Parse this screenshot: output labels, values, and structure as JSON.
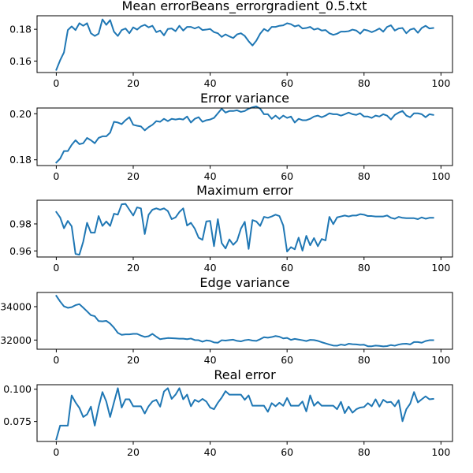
{
  "figure_title": "Mean errorBeans_errorgradient_0.5.txt",
  "line_color": "#1f77b4",
  "chart_data": [
    {
      "type": "line",
      "title": "",
      "xlim": [
        -5,
        103
      ],
      "ylim": [
        0.1528,
        0.1885
      ],
      "xticks": [
        0,
        20,
        40,
        60,
        80,
        100
      ],
      "xtick_labels": [
        "0",
        "20",
        "40",
        "60",
        "80",
        "100"
      ],
      "yticks": [
        0.16,
        0.18
      ],
      "ytick_labels": [
        "0.16",
        "0.18"
      ],
      "x": [
        0,
        1,
        2,
        3,
        4,
        5,
        6,
        7,
        8,
        9,
        10,
        11,
        12,
        13,
        14,
        15,
        16,
        17,
        18,
        19,
        20,
        21,
        22,
        23,
        24,
        25,
        26,
        27,
        28,
        29,
        30,
        31,
        32,
        33,
        34,
        35,
        36,
        37,
        38,
        39,
        40,
        41,
        42,
        43,
        44,
        45,
        46,
        47,
        48,
        49,
        50,
        51,
        52,
        53,
        54,
        55,
        56,
        57,
        58,
        59,
        60,
        61,
        62,
        63,
        64,
        65,
        66,
        67,
        68,
        69,
        70,
        71,
        72,
        73,
        74,
        75,
        76,
        77,
        78,
        79,
        80,
        81,
        82,
        83,
        84,
        85,
        86,
        87,
        88,
        89,
        90,
        91,
        92,
        93,
        94,
        95,
        96,
        97,
        98
      ],
      "y": [
        0.1545,
        0.1605,
        0.1655,
        0.1795,
        0.1818,
        0.1795,
        0.1838,
        0.1822,
        0.1838,
        0.1775,
        0.1758,
        0.1772,
        0.1862,
        0.1828,
        0.1858,
        0.1785,
        0.1758,
        0.1795,
        0.1805,
        0.1775,
        0.1812,
        0.1798,
        0.1818,
        0.1828,
        0.1812,
        0.1822,
        0.1782,
        0.1792,
        0.1762,
        0.1802,
        0.1805,
        0.1788,
        0.1822,
        0.1792,
        0.1815,
        0.1815,
        0.1805,
        0.1815,
        0.1795,
        0.1798,
        0.1802,
        0.1782,
        0.1775,
        0.1752,
        0.1768,
        0.1755,
        0.1745,
        0.1768,
        0.1775,
        0.1758,
        0.1725,
        0.1698,
        0.1728,
        0.1772,
        0.1802,
        0.1788,
        0.1815,
        0.1815,
        0.1822,
        0.1825,
        0.1838,
        0.1832,
        0.1818,
        0.1825,
        0.1805,
        0.1808,
        0.1815,
        0.1798,
        0.1805,
        0.1792,
        0.1795,
        0.1775,
        0.1765,
        0.1772,
        0.1785,
        0.1785,
        0.1788,
        0.1798,
        0.1792,
        0.1772,
        0.1798,
        0.1792,
        0.1782,
        0.1792,
        0.1805,
        0.1785,
        0.1815,
        0.1825,
        0.1792,
        0.1805,
        0.1808,
        0.1775,
        0.1798,
        0.1805,
        0.1778,
        0.1808,
        0.1822,
        0.1805,
        0.1808
      ]
    },
    {
      "type": "line",
      "title": "Error variance",
      "xlim": [
        -5,
        103
      ],
      "ylim": [
        0.1775,
        0.2025
      ],
      "xticks": [
        0,
        20,
        40,
        60,
        80,
        100
      ],
      "xtick_labels": [
        "0",
        "20",
        "40",
        "60",
        "80",
        "100"
      ],
      "yticks": [
        0.18,
        0.2
      ],
      "ytick_labels": [
        "0.18",
        "0.20"
      ],
      "x": [
        0,
        1,
        2,
        3,
        4,
        5,
        6,
        7,
        8,
        9,
        10,
        11,
        12,
        13,
        14,
        15,
        16,
        17,
        18,
        19,
        20,
        21,
        22,
        23,
        24,
        25,
        26,
        27,
        28,
        29,
        30,
        31,
        32,
        33,
        34,
        35,
        36,
        37,
        38,
        39,
        40,
        41,
        42,
        43,
        44,
        45,
        46,
        47,
        48,
        49,
        50,
        51,
        52,
        53,
        54,
        55,
        56,
        57,
        58,
        59,
        60,
        61,
        62,
        63,
        64,
        65,
        66,
        67,
        68,
        69,
        70,
        71,
        72,
        73,
        74,
        75,
        76,
        77,
        78,
        79,
        80,
        81,
        82,
        83,
        84,
        85,
        86,
        87,
        88,
        89,
        90,
        91,
        92,
        93,
        94,
        95,
        96,
        97,
        98
      ],
      "y": [
        0.1788,
        0.1805,
        0.1838,
        0.1838,
        0.1865,
        0.1885,
        0.1868,
        0.1872,
        0.1895,
        0.1885,
        0.1872,
        0.1895,
        0.1902,
        0.1902,
        0.1918,
        0.1965,
        0.1962,
        0.1955,
        0.1972,
        0.1985,
        0.1952,
        0.1948,
        0.1945,
        0.1928,
        0.1942,
        0.1952,
        0.1968,
        0.1965,
        0.1978,
        0.1968,
        0.1978,
        0.1975,
        0.1978,
        0.1975,
        0.1988,
        0.1962,
        0.1978,
        0.1985,
        0.1965,
        0.1972,
        0.1975,
        0.1982,
        0.2002,
        0.2022,
        0.2005,
        0.2012,
        0.2012,
        0.2015,
        0.2008,
        0.2012,
        0.2022,
        0.2028,
        0.2032,
        0.2022,
        0.1998,
        0.1998,
        0.1978,
        0.1992,
        0.1978,
        0.1992,
        0.1982,
        0.1988,
        0.1962,
        0.1978,
        0.1972,
        0.1972,
        0.1978,
        0.1988,
        0.1992,
        0.1985,
        0.1992,
        0.2002,
        0.1998,
        0.1998,
        0.1992,
        0.1998,
        0.2005,
        0.1998,
        0.1995,
        0.2002,
        0.1988,
        0.1988,
        0.1982,
        0.1992,
        0.1988,
        0.1998,
        0.1992,
        0.1975,
        0.1995,
        0.2005,
        0.2012,
        0.1992,
        0.1985,
        0.2002,
        0.2002,
        0.1998,
        0.1985,
        0.1998,
        0.1995
      ]
    },
    {
      "type": "line",
      "title": "Maximum error",
      "xlim": [
        -5,
        103
      ],
      "ylim": [
        0.9555,
        0.9975
      ],
      "xticks": [
        0,
        20,
        40,
        60,
        80,
        100
      ],
      "xtick_labels": [
        "0",
        "20",
        "40",
        "60",
        "80",
        "100"
      ],
      "yticks": [
        0.96,
        0.98
      ],
      "ytick_labels": [
        "0.96",
        "0.98"
      ],
      "x": [
        0,
        1,
        2,
        3,
        4,
        5,
        6,
        7,
        8,
        9,
        10,
        11,
        12,
        13,
        14,
        15,
        16,
        17,
        18,
        19,
        20,
        21,
        22,
        23,
        24,
        25,
        26,
        27,
        28,
        29,
        30,
        31,
        32,
        33,
        34,
        35,
        36,
        37,
        38,
        39,
        40,
        41,
        42,
        43,
        44,
        45,
        46,
        47,
        48,
        49,
        50,
        51,
        52,
        53,
        54,
        55,
        56,
        57,
        58,
        59,
        60,
        61,
        62,
        63,
        64,
        65,
        66,
        67,
        68,
        69,
        70,
        71,
        72,
        73,
        74,
        75,
        76,
        77,
        78,
        79,
        80,
        81,
        82,
        83,
        84,
        85,
        86,
        87,
        88,
        89,
        90,
        91,
        92,
        93,
        94,
        95,
        96,
        97,
        98
      ],
      "y": [
        0.9888,
        0.9848,
        0.9768,
        0.9822,
        0.9782,
        0.9578,
        0.9572,
        0.9668,
        0.9808,
        0.9735,
        0.9735,
        0.9858,
        0.9785,
        0.9818,
        0.9785,
        0.9875,
        0.9868,
        0.9945,
        0.9948,
        0.9905,
        0.9862,
        0.9922,
        0.9915,
        0.9725,
        0.9868,
        0.9905,
        0.9915,
        0.9905,
        0.9915,
        0.9895,
        0.9835,
        0.9848,
        0.9888,
        0.9915,
        0.9788,
        0.9808,
        0.9765,
        0.9698,
        0.9682,
        0.9818,
        0.9822,
        0.9635,
        0.9835,
        0.9658,
        0.9618,
        0.9685,
        0.9645,
        0.9675,
        0.9765,
        0.9815,
        0.9615,
        0.9828,
        0.9818,
        0.9785,
        0.9852,
        0.9845,
        0.9855,
        0.9868,
        0.9858,
        0.9788,
        0.9595,
        0.9628,
        0.9612,
        0.9698,
        0.9602,
        0.9712,
        0.9642,
        0.9695,
        0.9635,
        0.9688,
        0.9678,
        0.9852,
        0.9798,
        0.9848,
        0.9855,
        0.9862,
        0.9855,
        0.9862,
        0.9862,
        0.9872,
        0.9868,
        0.9858,
        0.9858,
        0.9855,
        0.9855,
        0.9855,
        0.9862,
        0.9845,
        0.9838,
        0.9852,
        0.9845,
        0.9842,
        0.9842,
        0.9842,
        0.9835,
        0.9848,
        0.9838,
        0.9845,
        0.9845
      ]
    },
    {
      "type": "line",
      "title": "Edge variance",
      "xlim": [
        -5,
        103
      ],
      "ylim": [
        31450,
        34850
      ],
      "xticks": [
        0,
        20,
        40,
        60,
        80,
        100
      ],
      "xtick_labels": [
        "0",
        "20",
        "40",
        "60",
        "80",
        "100"
      ],
      "yticks": [
        32000,
        34000
      ],
      "ytick_labels": [
        "32000",
        "34000"
      ],
      "x": [
        0,
        1,
        2,
        3,
        4,
        5,
        6,
        7,
        8,
        9,
        10,
        11,
        12,
        13,
        14,
        15,
        16,
        17,
        18,
        19,
        20,
        21,
        22,
        23,
        24,
        25,
        26,
        27,
        28,
        29,
        30,
        31,
        32,
        33,
        34,
        35,
        36,
        37,
        38,
        39,
        40,
        41,
        42,
        43,
        44,
        45,
        46,
        47,
        48,
        49,
        50,
        51,
        52,
        53,
        54,
        55,
        56,
        57,
        58,
        59,
        60,
        61,
        62,
        63,
        64,
        65,
        66,
        67,
        68,
        69,
        70,
        71,
        72,
        73,
        74,
        75,
        76,
        77,
        78,
        79,
        80,
        81,
        82,
        83,
        84,
        85,
        86,
        87,
        88,
        89,
        90,
        91,
        92,
        93,
        94,
        95,
        96,
        97,
        98
      ],
      "y": [
        34650,
        34310,
        34020,
        33930,
        33970,
        34090,
        34150,
        33940,
        33720,
        33490,
        33430,
        33140,
        33120,
        33150,
        32990,
        32740,
        32430,
        32310,
        32340,
        32340,
        32370,
        32370,
        32270,
        32190,
        32230,
        32370,
        32200,
        32050,
        32090,
        32120,
        32110,
        32100,
        32080,
        32080,
        32050,
        32090,
        32000,
        31990,
        31900,
        31980,
        31950,
        31860,
        31840,
        31990,
        31970,
        32000,
        32020,
        31950,
        31920,
        31990,
        32020,
        31970,
        31950,
        32050,
        32170,
        32140,
        32180,
        32240,
        32200,
        32100,
        32130,
        32010,
        32070,
        32030,
        31990,
        31940,
        32010,
        32000,
        31950,
        31870,
        31800,
        31730,
        31670,
        31660,
        31730,
        31690,
        31780,
        31750,
        31740,
        31710,
        31720,
        31630,
        31630,
        31670,
        31650,
        31620,
        31640,
        31700,
        31660,
        31730,
        31770,
        31780,
        31740,
        31880,
        31880,
        31840,
        31940,
        31990,
        31990
      ]
    },
    {
      "type": "line",
      "title": "Real error",
      "xlim": [
        -5,
        103
      ],
      "ylim": [
        0.0595,
        0.1035
      ],
      "xticks": [
        0,
        20,
        40,
        60,
        80,
        100
      ],
      "xtick_labels": [
        "0",
        "20",
        "40",
        "60",
        "80",
        "100"
      ],
      "yticks": [
        0.075,
        0.1
      ],
      "ytick_labels": [
        "0.075",
        "0.100"
      ],
      "x": [
        0,
        1,
        2,
        3,
        4,
        5,
        6,
        7,
        8,
        9,
        10,
        11,
        12,
        13,
        14,
        15,
        16,
        17,
        18,
        19,
        20,
        21,
        22,
        23,
        24,
        25,
        26,
        27,
        28,
        29,
        30,
        31,
        32,
        33,
        34,
        35,
        36,
        37,
        38,
        39,
        40,
        41,
        42,
        43,
        44,
        45,
        46,
        47,
        48,
        49,
        50,
        51,
        52,
        53,
        54,
        55,
        56,
        57,
        58,
        59,
        60,
        61,
        62,
        63,
        64,
        65,
        66,
        67,
        68,
        69,
        70,
        71,
        72,
        73,
        74,
        75,
        76,
        77,
        78,
        79,
        80,
        81,
        82,
        83,
        84,
        85,
        86,
        87,
        88,
        89,
        90,
        91,
        92,
        93,
        94,
        95,
        96,
        97,
        98
      ],
      "y": [
        0.0612,
        0.0718,
        0.0718,
        0.0718,
        0.0952,
        0.0898,
        0.0855,
        0.0785,
        0.0805,
        0.0865,
        0.0718,
        0.0862,
        0.0978,
        0.0905,
        0.0785,
        0.0898,
        0.1008,
        0.0858,
        0.0922,
        0.0922,
        0.0868,
        0.0868,
        0.0868,
        0.0812,
        0.0868,
        0.0905,
        0.0918,
        0.0865,
        0.0982,
        0.1008,
        0.0925,
        0.0958,
        0.1008,
        0.0922,
        0.0958,
        0.0868,
        0.0918,
        0.0902,
        0.0925,
        0.0905,
        0.0858,
        0.0845,
        0.0895,
        0.0935,
        0.0985,
        0.0958,
        0.0958,
        0.0958,
        0.0958,
        0.0918,
        0.0952,
        0.0872,
        0.0872,
        0.0872,
        0.0872,
        0.0825,
        0.0892,
        0.0868,
        0.0895,
        0.0872,
        0.0932,
        0.0872,
        0.0872,
        0.0872,
        0.0905,
        0.0828,
        0.0952,
        0.0872,
        0.0902,
        0.0872,
        0.0872,
        0.0872,
        0.0872,
        0.0845,
        0.0902,
        0.0815,
        0.0865,
        0.0818,
        0.0845,
        0.0858,
        0.0862,
        0.0892,
        0.0868,
        0.0922,
        0.0865,
        0.0918,
        0.0898,
        0.0902,
        0.0868,
        0.0915,
        0.0752,
        0.0845,
        0.0888,
        0.0978,
        0.0898,
        0.0922,
        0.0945,
        0.0922,
        0.0925
      ]
    }
  ]
}
